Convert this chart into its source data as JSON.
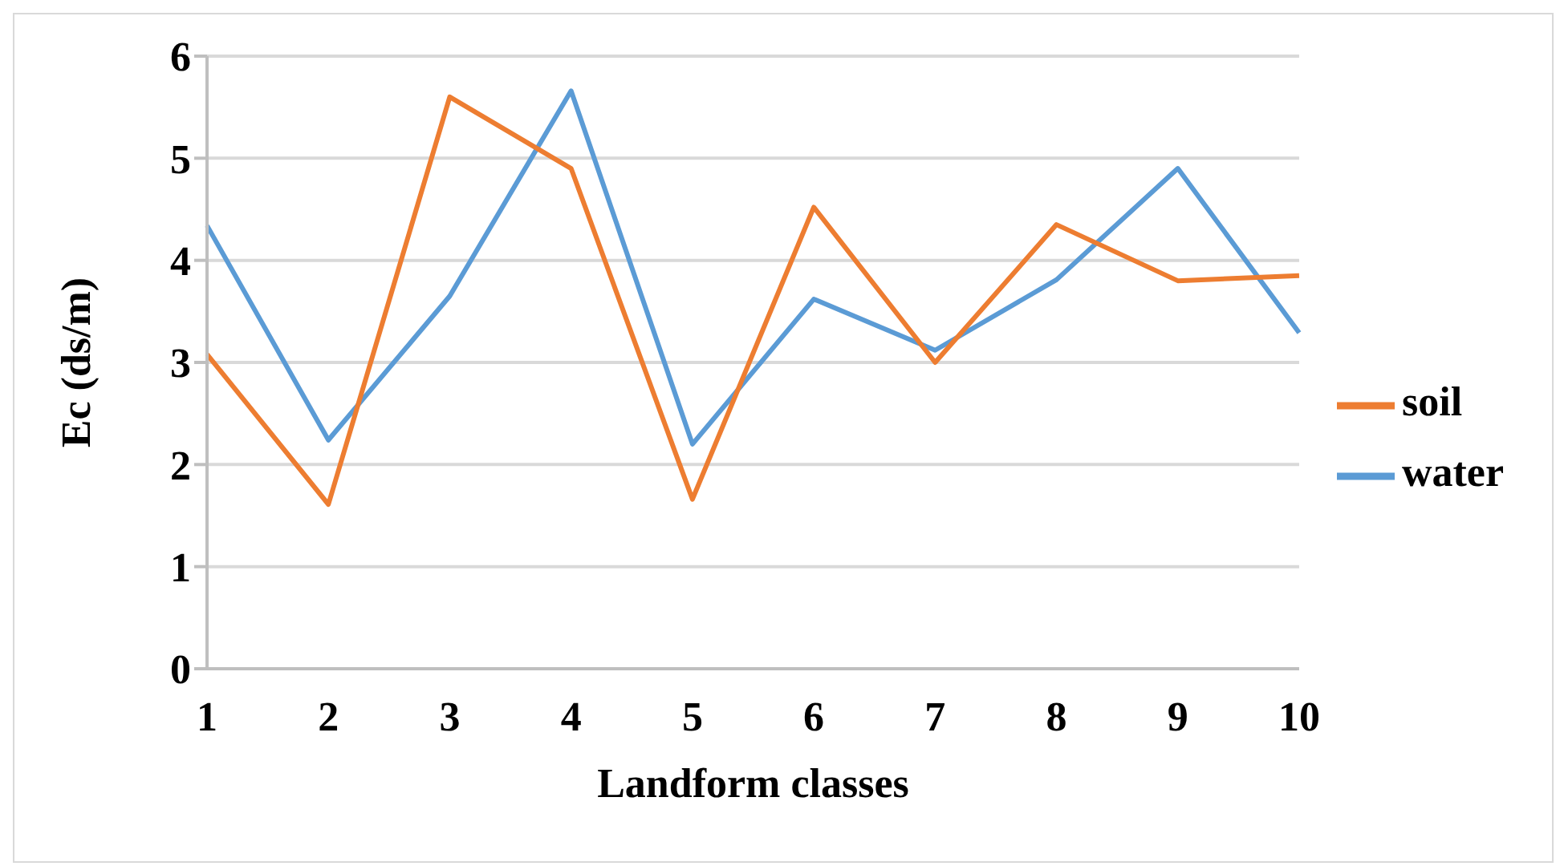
{
  "chart_data": {
    "type": "line",
    "xlabel": "Landform classes",
    "ylabel": "Ec (ds/m)",
    "categories": [
      "1",
      "2",
      "3",
      "4",
      "5",
      "6",
      "7",
      "8",
      "9",
      "10"
    ],
    "series": [
      {
        "name": "water",
        "color": "#5b9bd5",
        "values": [
          4.34,
          2.24,
          3.65,
          5.66,
          2.2,
          3.62,
          3.12,
          3.81,
          4.9,
          3.29
        ]
      },
      {
        "name": "soil",
        "color": "#ed7d31",
        "values": [
          3.08,
          1.61,
          5.6,
          4.9,
          1.66,
          4.52,
          3.0,
          4.35,
          3.8,
          3.85
        ]
      }
    ],
    "ylim": [
      0,
      6
    ],
    "yticks": [
      0,
      1,
      2,
      3,
      4,
      5,
      6
    ],
    "grid": "y",
    "legend": "right",
    "marker": "none",
    "line_style": "solid"
  }
}
